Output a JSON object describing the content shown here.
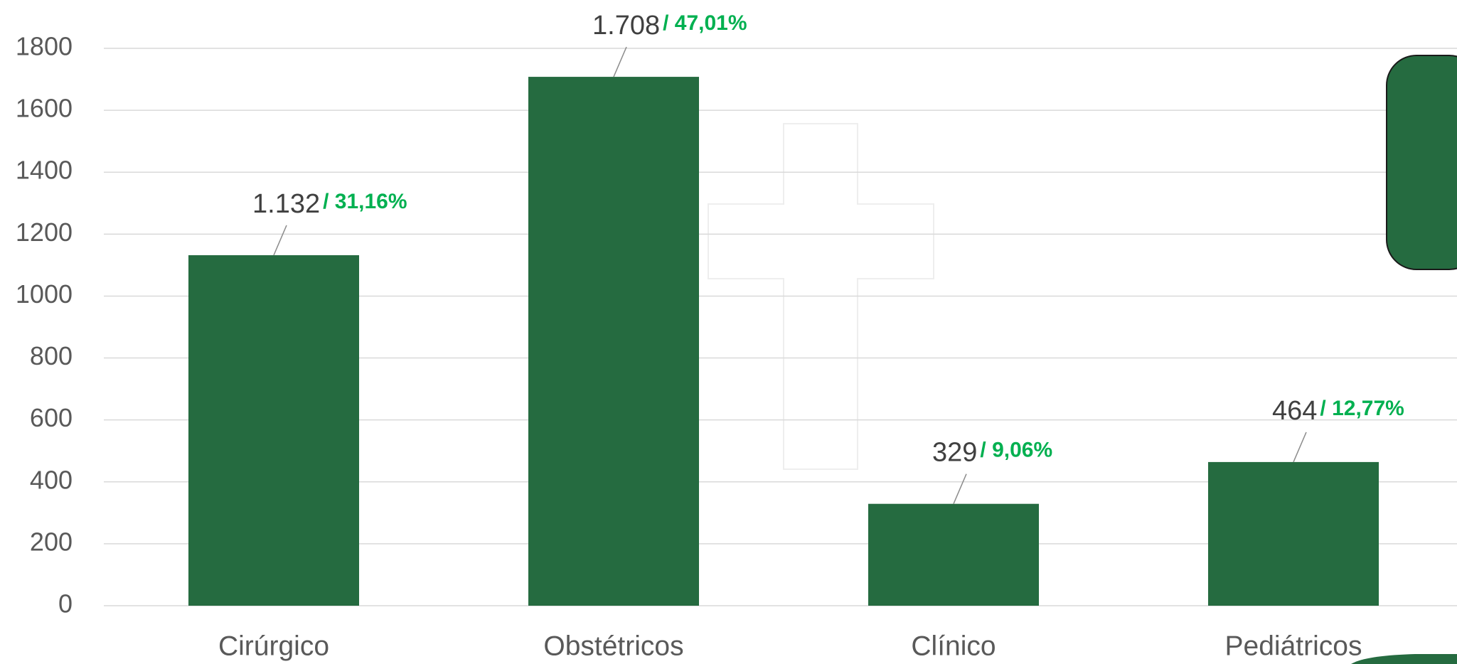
{
  "chart_data": {
    "type": "bar",
    "categories": [
      "Cirúrgico",
      "Obstétricos",
      "Clínico",
      "Pediátricos"
    ],
    "values": [
      1132,
      1708,
      329,
      464
    ],
    "value_labels": [
      "1.132",
      "1.708",
      "329",
      "464"
    ],
    "share_labels": [
      "/ 31,16%",
      "/ 47,01%",
      "/ 9,06%",
      "/ 12,77%"
    ],
    "color": "#256b40",
    "ylim": [
      0,
      1800
    ],
    "yticks": [
      0,
      200,
      400,
      600,
      800,
      1000,
      1200,
      1400,
      1600,
      1800
    ],
    "grid": true
  }
}
